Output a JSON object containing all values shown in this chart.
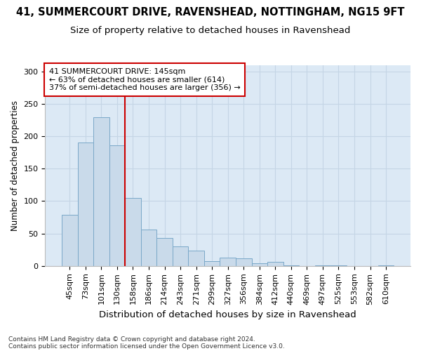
{
  "title1": "41, SUMMERCOURT DRIVE, RAVENSHEAD, NOTTINGHAM, NG15 9FT",
  "title2": "Size of property relative to detached houses in Ravenshead",
  "xlabel": "Distribution of detached houses by size in Ravenshead",
  "ylabel": "Number of detached properties",
  "categories": [
    "45sqm",
    "73sqm",
    "101sqm",
    "130sqm",
    "158sqm",
    "186sqm",
    "214sqm",
    "243sqm",
    "271sqm",
    "299sqm",
    "327sqm",
    "356sqm",
    "384sqm",
    "412sqm",
    "440sqm",
    "469sqm",
    "497sqm",
    "525sqm",
    "553sqm",
    "582sqm",
    "610sqm"
  ],
  "values": [
    79,
    190,
    229,
    186,
    105,
    56,
    43,
    30,
    24,
    7,
    13,
    12,
    4,
    6,
    1,
    0,
    1,
    1,
    0,
    0,
    1
  ],
  "bar_color": "#c9daea",
  "bar_edge_color": "#7aa8c8",
  "grid_color": "#c5d5e5",
  "plot_bg_color": "#dce9f5",
  "fig_bg_color": "#ffffff",
  "vline_color": "#cc0000",
  "vline_x_index": 3,
  "annotation_text": "41 SUMMERCOURT DRIVE: 145sqm\n← 63% of detached houses are smaller (614)\n37% of semi-detached houses are larger (356) →",
  "annotation_box_color": "#ffffff",
  "annotation_box_edge": "#cc0000",
  "footnote1": "Contains HM Land Registry data © Crown copyright and database right 2024.",
  "footnote2": "Contains public sector information licensed under the Open Government Licence v3.0.",
  "ylim": [
    0,
    310
  ],
  "title1_fontsize": 10.5,
  "title2_fontsize": 9.5,
  "xlabel_fontsize": 9.5,
  "ylabel_fontsize": 8.5,
  "tick_fontsize": 8,
  "annotation_fontsize": 8,
  "footnote_fontsize": 6.5
}
